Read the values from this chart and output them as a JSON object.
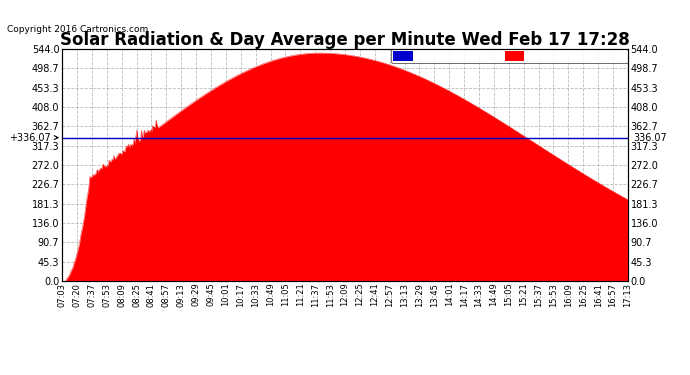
{
  "title": "Solar Radiation & Day Average per Minute Wed Feb 17 17:28",
  "copyright": "Copyright 2016 Cartronics.com",
  "median_value": 336.07,
  "y_max": 544.0,
  "y_min": 0.0,
  "y_ticks": [
    0.0,
    45.3,
    90.7,
    136.0,
    181.3,
    226.7,
    272.0,
    317.3,
    362.7,
    408.0,
    453.3,
    498.7,
    544.0
  ],
  "x_labels": [
    "07:03",
    "07:20",
    "07:37",
    "07:53",
    "08:09",
    "08:25",
    "08:41",
    "08:57",
    "09:13",
    "09:29",
    "09:45",
    "10:01",
    "10:17",
    "10:33",
    "10:49",
    "11:05",
    "11:21",
    "11:37",
    "11:53",
    "12:09",
    "12:25",
    "12:41",
    "12:57",
    "13:13",
    "13:29",
    "13:45",
    "14:01",
    "14:17",
    "14:33",
    "14:49",
    "15:05",
    "15:21",
    "15:37",
    "15:53",
    "16:09",
    "16:25",
    "16:41",
    "16:57",
    "17:13"
  ],
  "radiation_color": "#FF0000",
  "median_color": "#0000CC",
  "background_color": "#FFFFFF",
  "grid_color": "#AAAAAA",
  "title_fontsize": 12,
  "legend_median_bg": "#0000CC",
  "legend_radiation_bg": "#FF0000",
  "n_points": 614,
  "peak_value": 534.0,
  "noise_seed": 42
}
